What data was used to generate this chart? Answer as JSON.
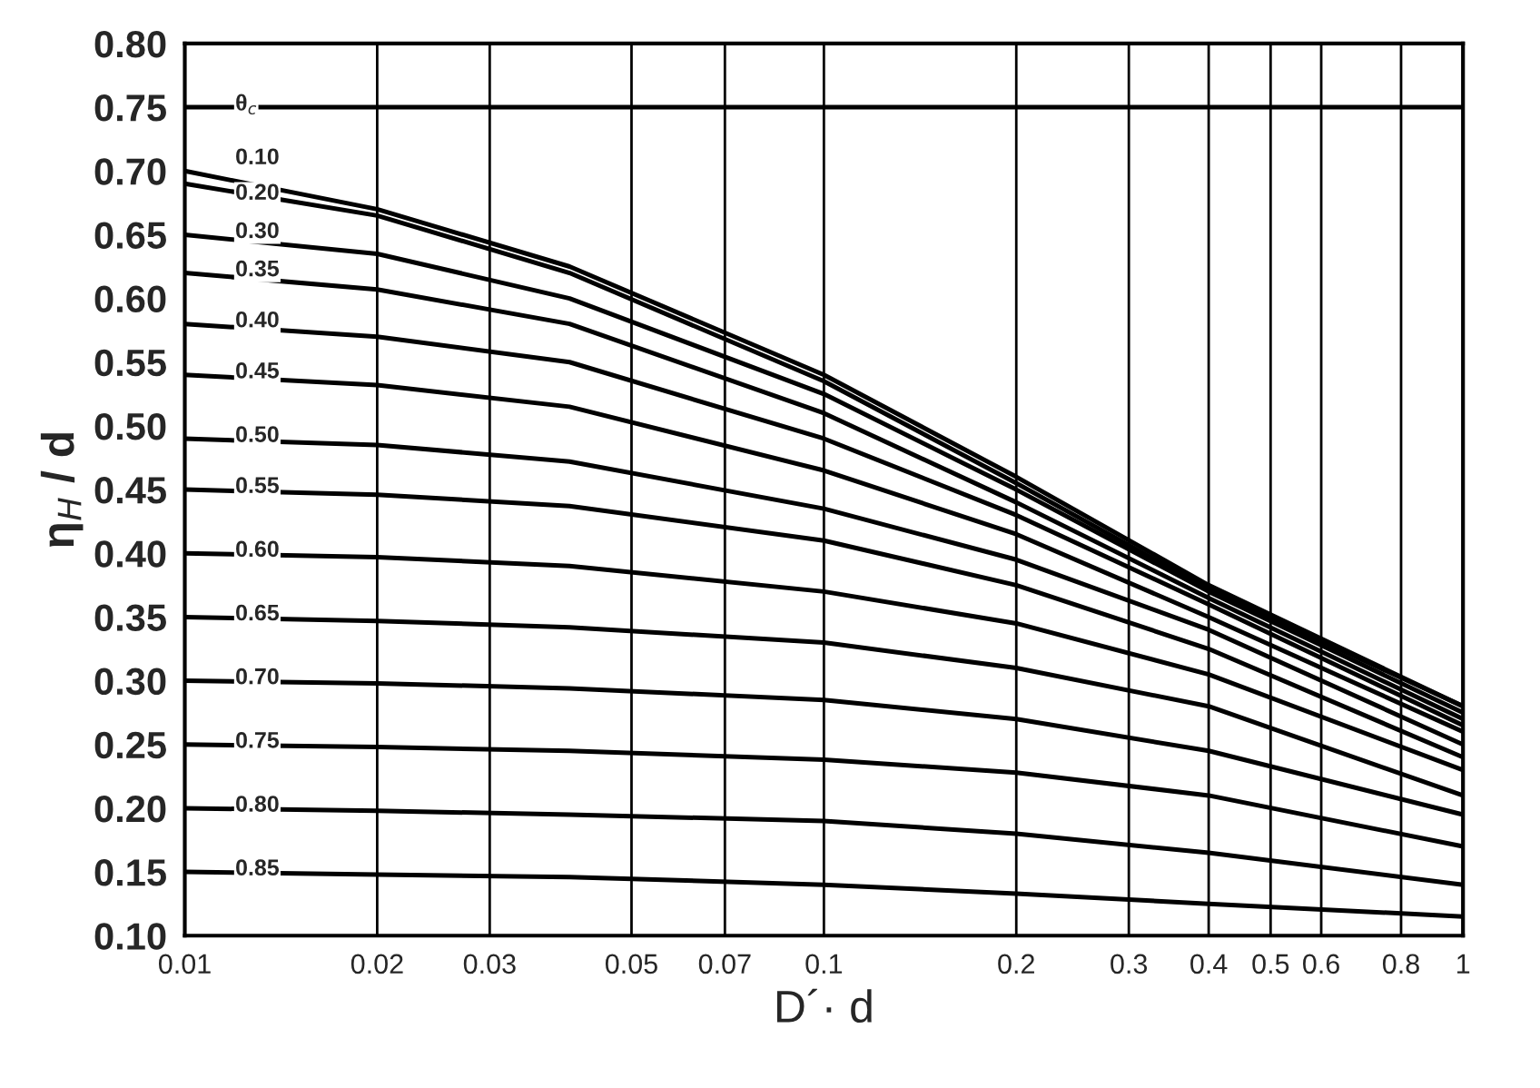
{
  "chart_data": {
    "type": "line",
    "xlabel": "D´· d",
    "ylabel": "η$_{H}$ / d",
    "log": "x",
    "grid": "x",
    "legend": false,
    "marker": "none",
    "line_style": "solid",
    "xlim": [
      0.01,
      1
    ],
    "ylim": [
      0.1,
      0.8
    ],
    "xticks": [
      0.01,
      0.02,
      0.03,
      0.05,
      0.07,
      0.1,
      0.2,
      0.3,
      0.4,
      0.5,
      0.6,
      0.8,
      1
    ],
    "yticks": [
      {
        "value": 0.1,
        "label": "0.10"
      },
      {
        "value": 0.15,
        "label": "0.15"
      },
      {
        "value": 0.2,
        "label": "0.20"
      },
      {
        "value": 0.25,
        "label": "0.25"
      },
      {
        "value": 0.3,
        "label": "0.30"
      },
      {
        "value": 0.35,
        "label": "0.35"
      },
      {
        "value": 0.4,
        "label": "0.40"
      },
      {
        "value": 0.45,
        "label": "0.45"
      },
      {
        "value": 0.5,
        "label": "0.50"
      },
      {
        "value": 0.55,
        "label": "0.55"
      },
      {
        "value": 0.6,
        "label": "0.60"
      },
      {
        "value": 0.65,
        "label": "0.65"
      },
      {
        "value": 0.7,
        "label": "0.70"
      },
      {
        "value": 0.75,
        "label": "0.75"
      },
      {
        "value": 0.8,
        "label": "0.80"
      }
    ],
    "x": [
      0.01,
      0.02,
      0.04,
      0.1,
      0.2,
      0.4,
      1
    ],
    "series": [
      {
        "name": "θ$_{c}$",
        "color": "#000000",
        "values": [
          0.75,
          0.75,
          0.75,
          0.75,
          0.75,
          0.75,
          0.75
        ]
      },
      {
        "name": "0.10",
        "color": "#000000",
        "values": [
          0.7,
          0.67,
          0.625,
          0.54,
          0.46,
          0.375,
          0.28
        ]
      },
      {
        "name": "0.20",
        "color": "#000000",
        "values": [
          0.69,
          0.665,
          0.62,
          0.535,
          0.455,
          0.372,
          0.28
        ]
      },
      {
        "name": "0.30",
        "color": "#000000",
        "values": [
          0.65,
          0.635,
          0.6,
          0.525,
          0.45,
          0.37,
          0.275
        ]
      },
      {
        "name": "0.35",
        "color": "#000000",
        "values": [
          0.62,
          0.607,
          0.58,
          0.51,
          0.44,
          0.365,
          0.27
        ]
      },
      {
        "name": "0.40",
        "color": "#000000",
        "values": [
          0.58,
          0.57,
          0.55,
          0.49,
          0.43,
          0.36,
          0.265
        ]
      },
      {
        "name": "0.45",
        "color": "#000000",
        "values": [
          0.54,
          0.532,
          0.515,
          0.465,
          0.415,
          0.35,
          0.26
        ]
      },
      {
        "name": "0.50",
        "color": "#000000",
        "values": [
          0.49,
          0.485,
          0.472,
          0.435,
          0.395,
          0.34,
          0.25
        ]
      },
      {
        "name": "0.55",
        "color": "#000000",
        "values": [
          0.45,
          0.446,
          0.437,
          0.41,
          0.375,
          0.325,
          0.24
        ]
      },
      {
        "name": "0.60",
        "color": "#000000",
        "values": [
          0.4,
          0.397,
          0.39,
          0.37,
          0.345,
          0.305,
          0.23
        ]
      },
      {
        "name": "0.65",
        "color": "#000000",
        "values": [
          0.35,
          0.347,
          0.342,
          0.33,
          0.31,
          0.28,
          0.21
        ]
      },
      {
        "name": "0.70",
        "color": "#000000",
        "values": [
          0.3,
          0.298,
          0.294,
          0.285,
          0.27,
          0.245,
          0.195
        ]
      },
      {
        "name": "0.75",
        "color": "#000000",
        "values": [
          0.25,
          0.248,
          0.245,
          0.238,
          0.228,
          0.21,
          0.17
        ]
      },
      {
        "name": "0.80",
        "color": "#000000",
        "values": [
          0.2,
          0.198,
          0.195,
          0.19,
          0.18,
          0.165,
          0.14
        ]
      },
      {
        "name": "0.85",
        "color": "#000000",
        "values": [
          0.15,
          0.148,
          0.146,
          0.14,
          0.133,
          0.125,
          0.115
        ]
      }
    ]
  }
}
